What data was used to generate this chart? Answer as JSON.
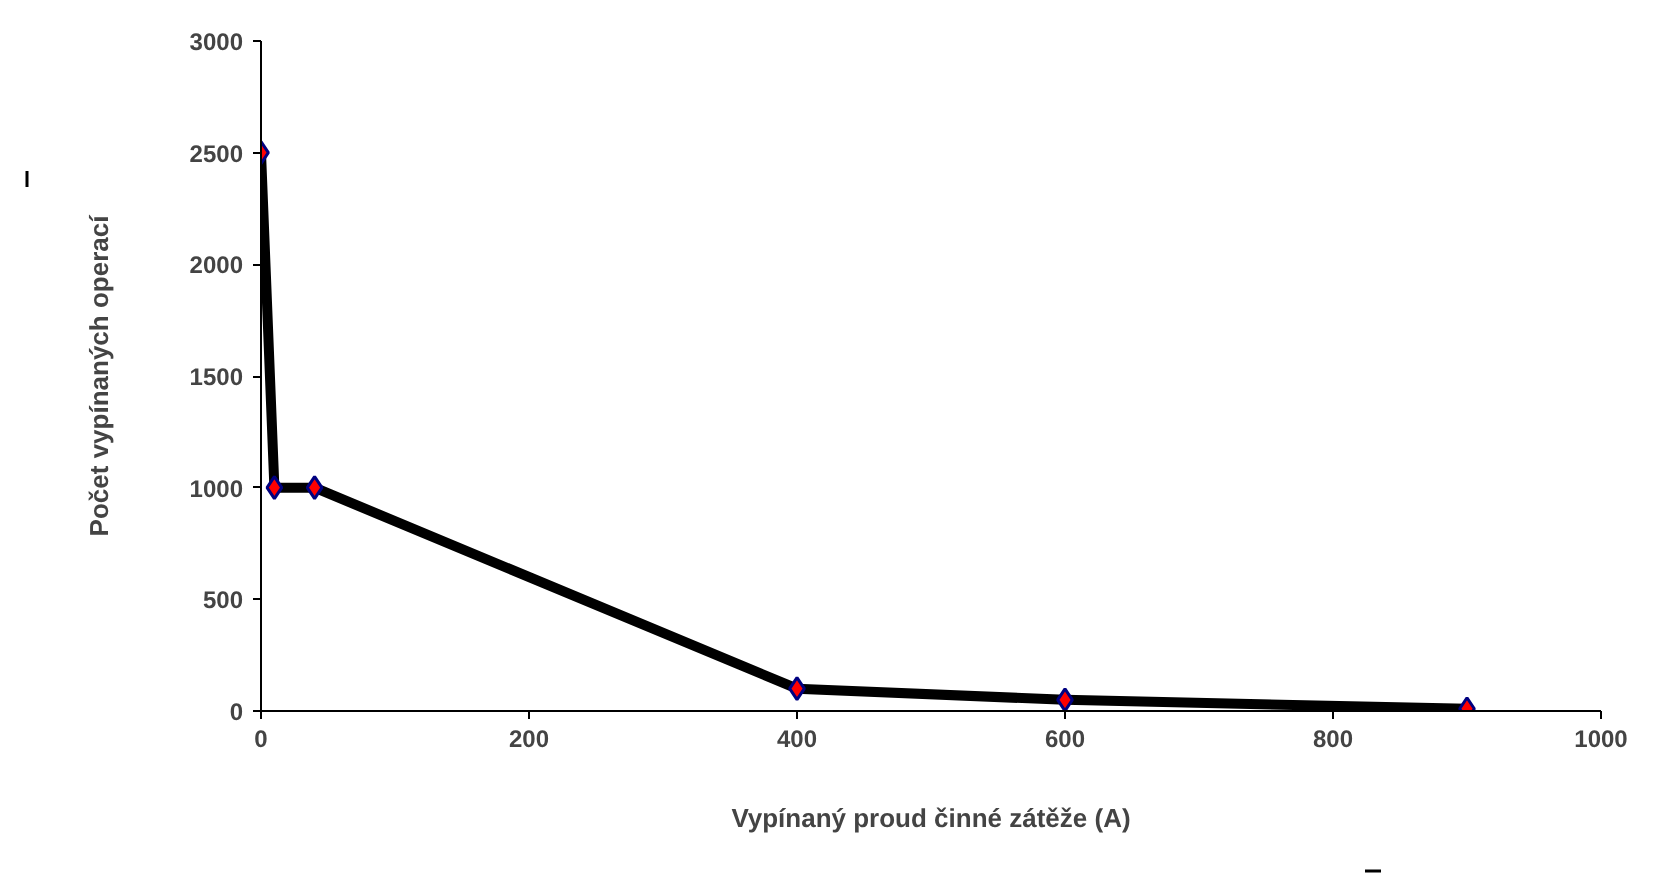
{
  "chart_data": {
    "type": "line",
    "xlabel": "Vypínaný proud činné zátěže (A)",
    "ylabel": "Počet vypínaných operací",
    "x": [
      0,
      10,
      40,
      400,
      600,
      900
    ],
    "series": [
      {
        "color": "#000000",
        "values": [
          2500,
          1000,
          1000,
          100,
          50,
          10
        ]
      }
    ],
    "xlim": [
      0,
      1000
    ],
    "xticks": [
      0,
      200,
      400,
      600,
      800,
      1000
    ],
    "ylim": [
      0,
      3000
    ],
    "yticks": [
      0,
      500,
      1000,
      1500,
      2000,
      2500,
      3000
    ],
    "grid": false,
    "marker": "diamond",
    "line_style": "solid"
  }
}
